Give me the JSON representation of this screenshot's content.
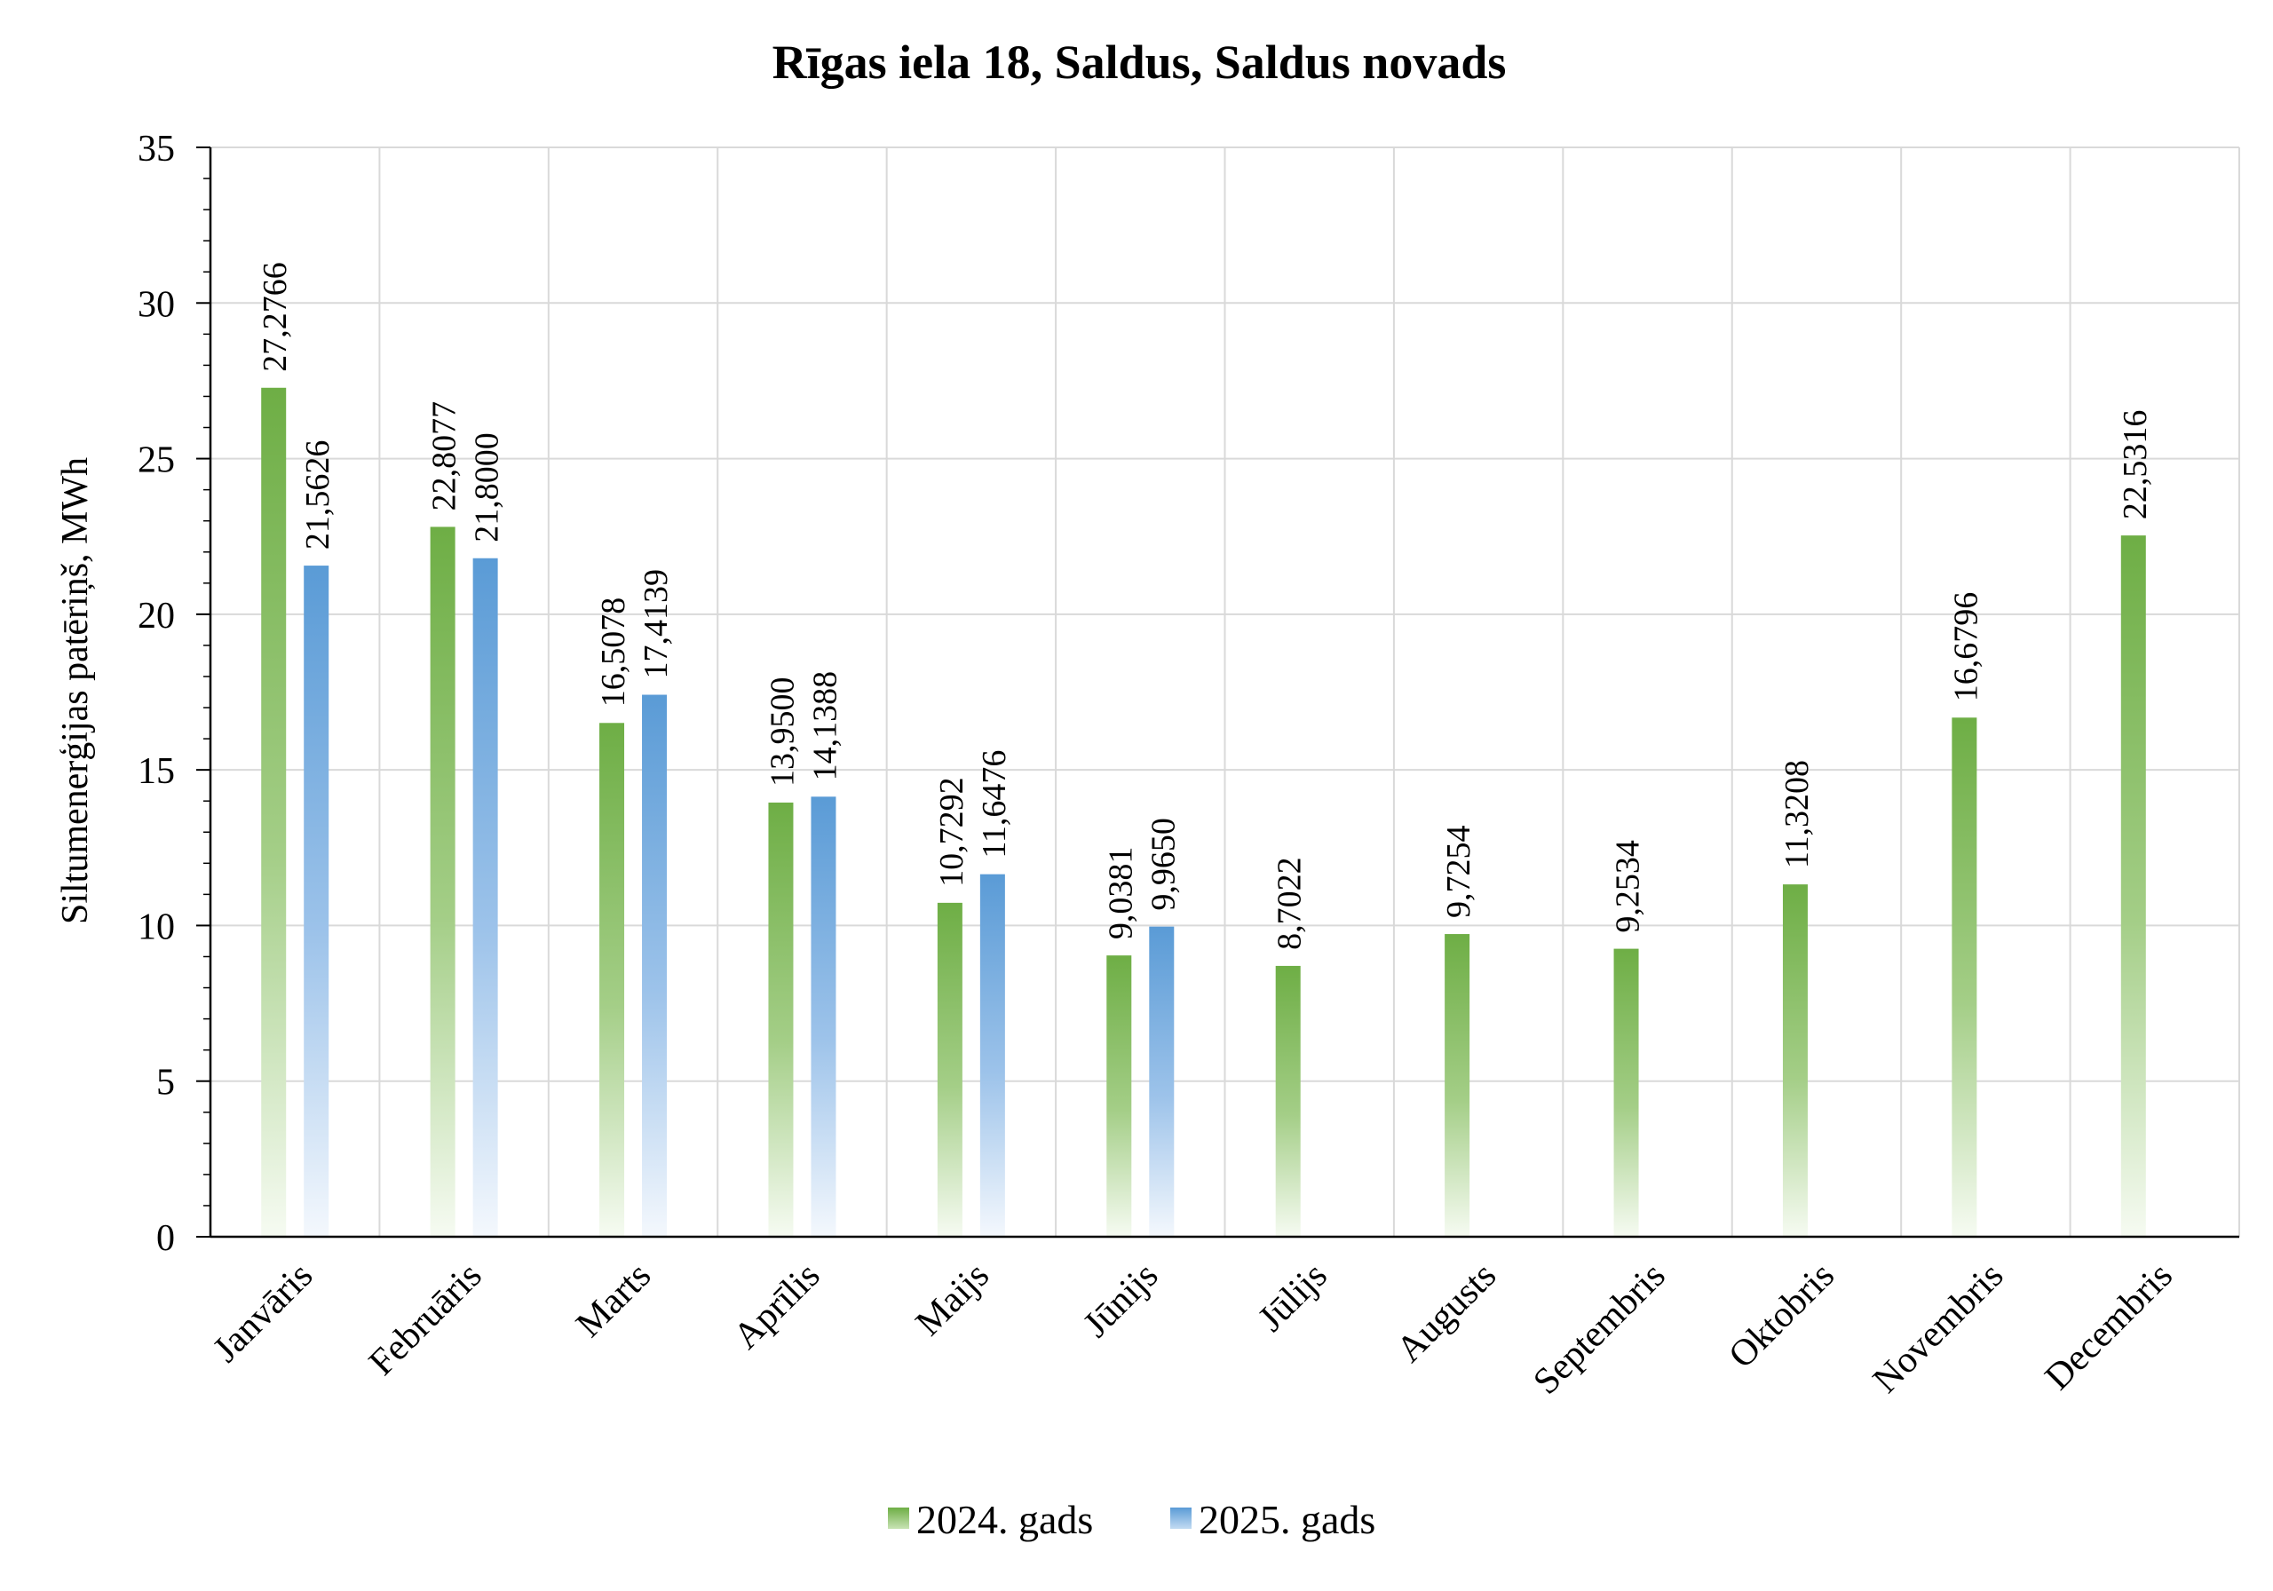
{
  "chart_data": {
    "type": "bar",
    "title": "Rīgas iela 18, Saldus, Saldus novads",
    "ylabel": "Siltumenerģijas patēriņš, MWh",
    "xlabel": "",
    "ylim": [
      0,
      35
    ],
    "yticks": [
      0,
      5,
      10,
      15,
      20,
      25,
      30,
      35
    ],
    "grid": true,
    "legend_position": "bottom",
    "categories": [
      "Janvāris",
      "Februāris",
      "Marts",
      "Aprīlis",
      "Maijs",
      "Jūnijs",
      "Jūlijs",
      "Augusts",
      "Septembris",
      "Oktobris",
      "Novembris",
      "Decembris"
    ],
    "series": [
      {
        "name": "2024. gads",
        "color": "#70AD47",
        "values": [
          27.2766,
          22.8077,
          16.5078,
          13.95,
          10.7292,
          9.0381,
          8.7022,
          9.7254,
          9.2534,
          11.3208,
          16.6796,
          22.5316
        ],
        "labels": [
          "27,2766",
          "22,8077",
          "16,5078",
          "13,9500",
          "10,7292",
          "9,0381",
          "8,7022",
          "9,7254",
          "9,2534",
          "11,3208",
          "16,6796",
          "22,5316"
        ]
      },
      {
        "name": "2025. gads",
        "color": "#5B9BD5",
        "values": [
          21.5626,
          21.8,
          17.4139,
          14.1388,
          11.6476,
          9.965,
          null,
          null,
          null,
          null,
          null,
          null
        ],
        "labels": [
          "21,5626",
          "21,8000",
          "17,4139",
          "14,1388",
          "11,6476",
          "9,9650",
          null,
          null,
          null,
          null,
          null,
          null
        ]
      }
    ]
  }
}
